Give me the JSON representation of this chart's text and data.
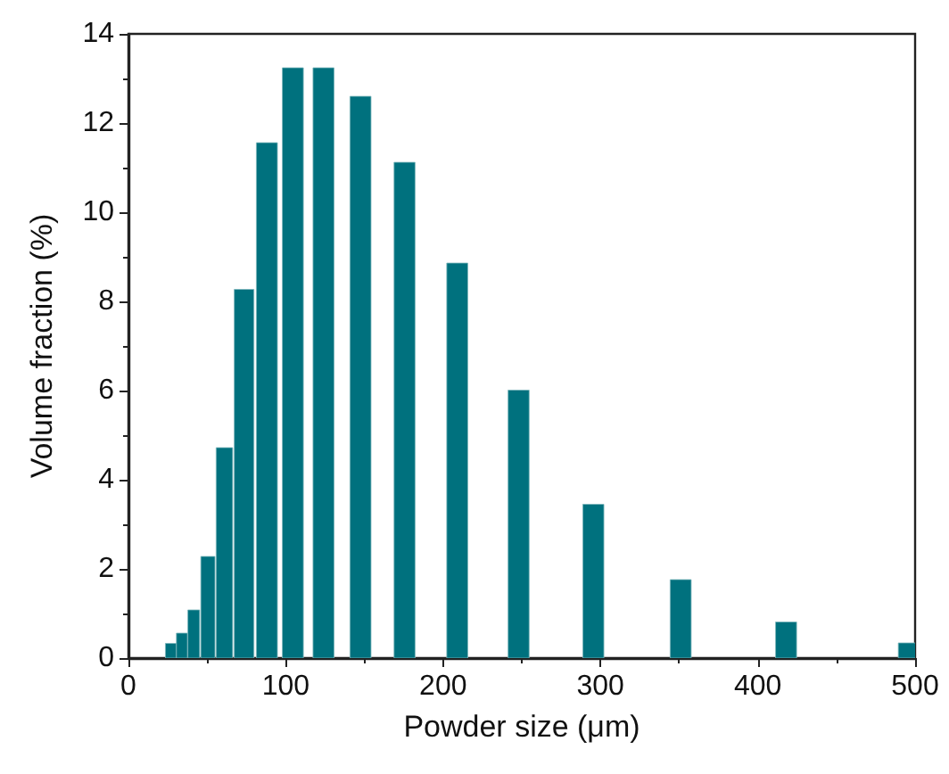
{
  "chart_data": {
    "type": "bar",
    "xlabel": "Powder size (μm)",
    "ylabel": "Volume fraction (%)",
    "x": [
      27,
      34,
      41.5,
      50.5,
      61,
      73.5,
      88,
      104.5,
      124,
      147.5,
      175.5,
      209,
      248,
      295.5,
      351,
      418,
      496
    ],
    "values": [
      0.33,
      0.56,
      1.08,
      2.28,
      4.72,
      8.27,
      11.56,
      13.24,
      13.24,
      12.6,
      11.12,
      8.86,
      6.01,
      3.45,
      1.76,
      0.81,
      0.34
    ],
    "color": "#00717e",
    "xlim": [
      0,
      500
    ],
    "xticks": [
      0,
      100,
      200,
      300,
      400,
      500
    ],
    "ylim": [
      0,
      14
    ],
    "yticks": [
      0,
      2,
      4,
      6,
      8,
      10,
      12,
      14
    ],
    "grid": false
  }
}
